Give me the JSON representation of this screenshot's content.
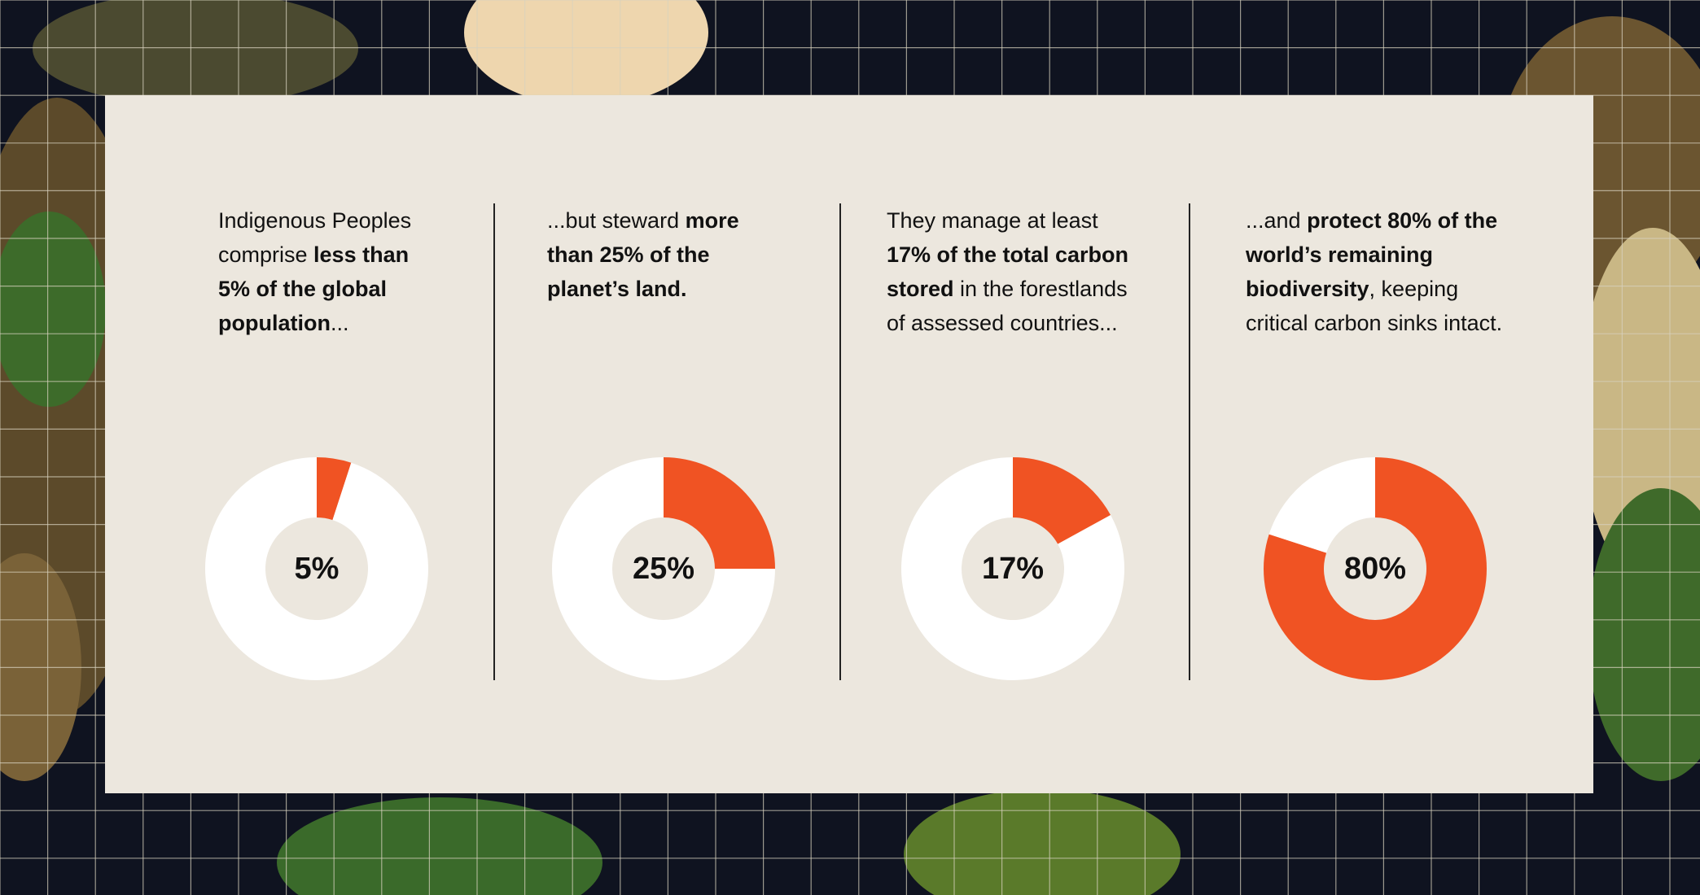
{
  "chart_data": [
    {
      "type": "donut",
      "description": [
        {
          "text": "Indigenous Peoples comprise ",
          "bold": false
        },
        {
          "text": "less than 5% of the global population",
          "bold": true
        },
        {
          "text": "...",
          "bold": false
        }
      ],
      "values": [
        5,
        95
      ],
      "value_labels": [
        "5%",
        null
      ],
      "colors": [
        "#f05323",
        "#ffffff"
      ]
    },
    {
      "type": "donut",
      "description": [
        {
          "text": "...but steward ",
          "bold": false
        },
        {
          "text": "more than 25% of the planet’s land.",
          "bold": true
        }
      ],
      "values": [
        25,
        75
      ],
      "value_labels": [
        "25%",
        null
      ],
      "colors": [
        "#f05323",
        "#ffffff"
      ]
    },
    {
      "type": "donut",
      "description": [
        {
          "text": "They manage at least ",
          "bold": false
        },
        {
          "text": "17% of the total carbon stored",
          "bold": true
        },
        {
          "text": " in the forestlands of assessed countries...",
          "bold": false
        }
      ],
      "values": [
        17,
        83
      ],
      "value_labels": [
        "17%",
        null
      ],
      "colors": [
        "#f05323",
        "#ffffff"
      ]
    },
    {
      "type": "donut",
      "description": [
        {
          "text": "...and ",
          "bold": false
        },
        {
          "text": "protect 80% of the world’s remaining biodiversity",
          "bold": true
        },
        {
          "text": ", keeping critical carbon sinks intact.",
          "bold": false
        }
      ],
      "values": [
        80,
        20
      ],
      "value_labels": [
        "80%",
        null
      ],
      "colors": [
        "#f05323",
        "#ffffff"
      ]
    }
  ]
}
